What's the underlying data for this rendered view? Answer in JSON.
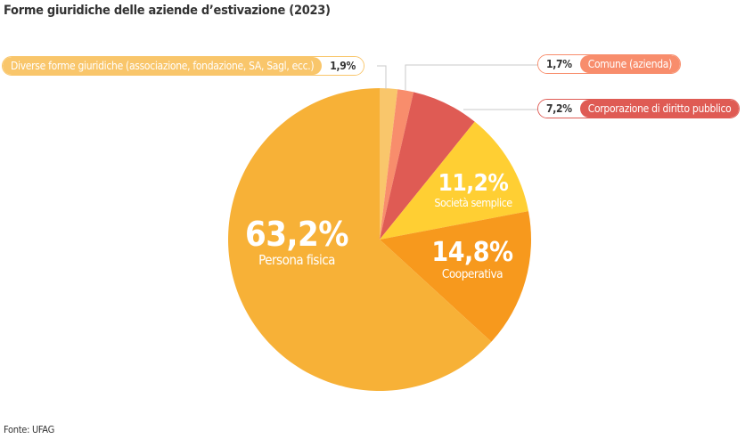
{
  "title": "Forme giuridiche delle aziende d’estivazione (2023)",
  "source": "Fonte: UFAG",
  "chart_data": {
    "type": "pie",
    "title": "Forme giuridiche delle aziende d’estivazione (2023)",
    "start": "12 o'clock, clockwise",
    "slices": [
      {
        "name": "Diverse forme giuridiche (associazione, fondazione, SA, Sagl, ecc.)",
        "value": 1.9,
        "label": "1,9%",
        "color": "#F9C66B"
      },
      {
        "name": "Comune (azienda)",
        "value": 1.7,
        "label": "1,7%",
        "color": "#F88D6C"
      },
      {
        "name": "Corporazione di diritto pubblico",
        "value": 7.2,
        "label": "7,2%",
        "color": "#DF5B54"
      },
      {
        "name": "Società semplice",
        "value": 11.2,
        "label": "11,2%",
        "color": "#FFCF33"
      },
      {
        "name": "Cooperativa",
        "value": 14.8,
        "label": "14,8%",
        "color": "#F7991D"
      },
      {
        "name": "Persona fisica",
        "value": 63.2,
        "label": "63,2%",
        "color": "#F7B137"
      }
    ]
  }
}
